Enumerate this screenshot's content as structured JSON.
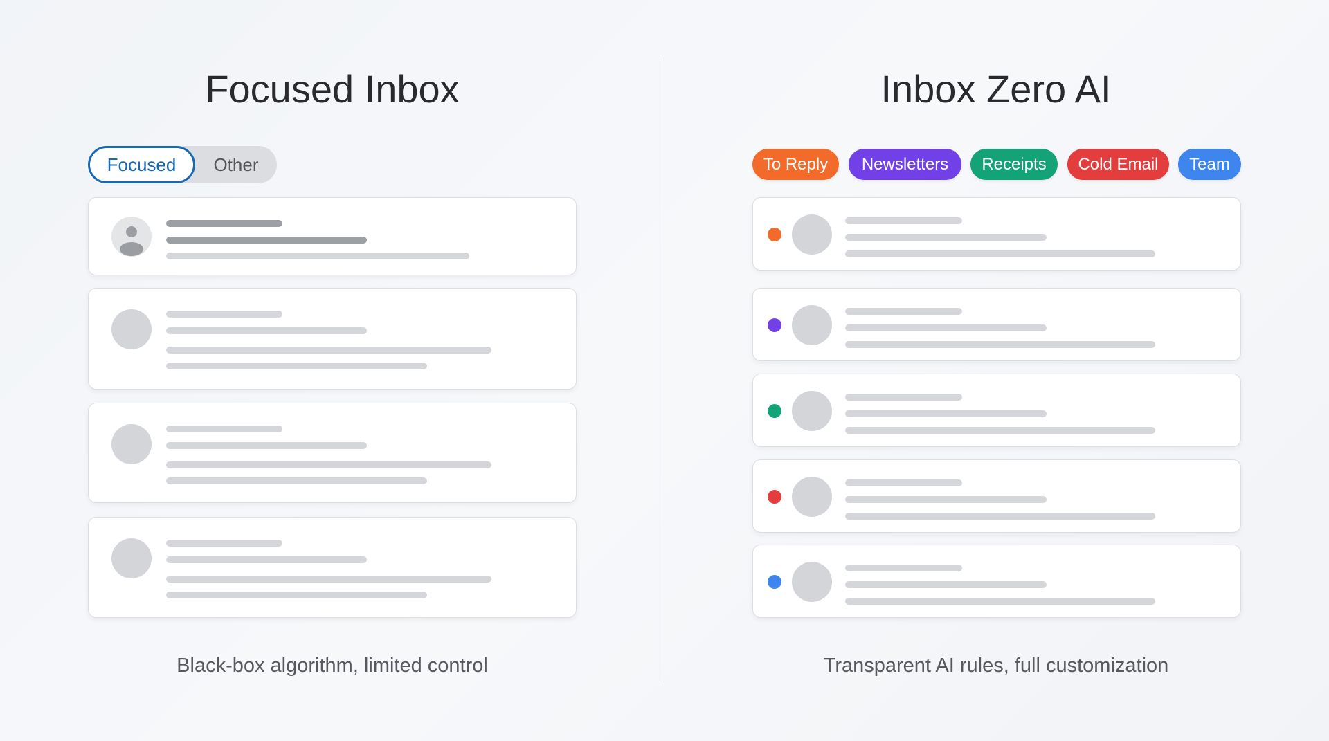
{
  "left": {
    "title": "Focused Inbox",
    "tabs": [
      {
        "label": "Focused",
        "active": true
      },
      {
        "label": "Other",
        "active": false
      }
    ],
    "active_color": "#1769b5",
    "caption": "Black-box algorithm, limited control",
    "cards": 4
  },
  "right": {
    "title": "Inbox Zero AI",
    "labels": [
      {
        "label": "To Reply",
        "color": "#f26b2a"
      },
      {
        "label": "Newsletters",
        "color": "#7140e6"
      },
      {
        "label": "Receipts",
        "color": "#14a277"
      },
      {
        "label": "Cold Email",
        "color": "#e43d3d"
      },
      {
        "label": "Team",
        "color": "#3e86ee"
      }
    ],
    "caption": "Transparent AI rules, full customization",
    "card_dot_colors": [
      "#f26b2a",
      "#7140e6",
      "#14a277",
      "#e43d3d",
      "#3e86ee"
    ]
  }
}
